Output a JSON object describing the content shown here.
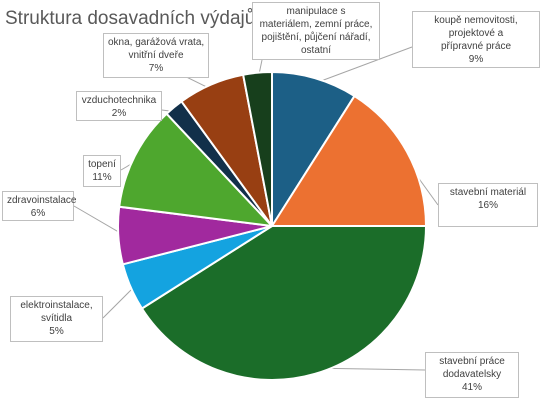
{
  "chart_data": {
    "type": "pie",
    "title": "Struktura dosavadních výdajů",
    "slices": [
      {
        "label": "koupě nemovitosti, projektové a přípravné práce",
        "label_lines": [
          "koupě nemovitosti,",
          "projektové a",
          "přípravné práce"
        ],
        "value_label": "9%",
        "value": 9,
        "color": "#1c5f86"
      },
      {
        "label": "stavební materiál",
        "label_lines": [
          "stavební materiál"
        ],
        "value_label": "16%",
        "value": 16,
        "color": "#ec7131"
      },
      {
        "label": "stavební práce dodavatelsky",
        "label_lines": [
          "stavební práce",
          "dodavatelsky"
        ],
        "value_label": "41%",
        "value": 41,
        "color": "#1b6d29"
      },
      {
        "label": "elektroinstalace, svítidla",
        "label_lines": [
          "elektroinstalace,",
          "svítidla"
        ],
        "value_label": "5%",
        "value": 5,
        "color": "#14a3e0"
      },
      {
        "label": "zdravoinstalace",
        "label_lines": [
          "zdravoinstalace"
        ],
        "value_label": "6%",
        "value": 6,
        "color": "#a1299e"
      },
      {
        "label": "topení",
        "label_lines": [
          "topení"
        ],
        "value_label": "11%",
        "value": 11,
        "color": "#4ea72e"
      },
      {
        "label": "vzduchotechnika",
        "label_lines": [
          "vzduchotechnika"
        ],
        "value_label": "2%",
        "value": 2,
        "color": "#12304a"
      },
      {
        "label": "okna, garážová vrata, vnitřní dveře",
        "label_lines": [
          "okna, garážová vrata,",
          "vnitřní dveře"
        ],
        "value_label": "7%",
        "value": 7,
        "color": "#983f12"
      },
      {
        "label": "manipulace s materiálem, zemní práce, pojištění, půjčení nářadí, ostatní",
        "label_lines": [
          "manipulace s",
          "materiálem, zemní práce,",
          "pojištění, půjčení nářadí,",
          "ostatní"
        ],
        "value_label": "",
        "value": 3,
        "color": "#173f1c"
      }
    ]
  }
}
